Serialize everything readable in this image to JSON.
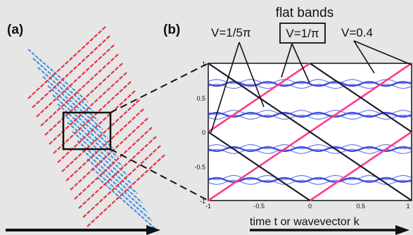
{
  "figure": {
    "panel_a_label": "(a)",
    "panel_b_label": "(b)",
    "header": "flat bands",
    "callouts": [
      "V=1/5π",
      "V=1/π",
      "V=0.4"
    ],
    "xlabel": "time t or wavevector k",
    "colors": {
      "red": "#e8343c",
      "blue": "#3a8fe0",
      "band_blue": "#3344dd",
      "pink": "#ff3b8a",
      "dark": "#1a1a2e",
      "background": "#e6e6e6"
    }
  },
  "chart_data": {
    "type": "line",
    "title": "",
    "xlabel": "time t or wavevector k",
    "ylabel": "",
    "xlim": [
      -1,
      1
    ],
    "ylim": [
      -1,
      1
    ],
    "x_ticks": [
      "-1",
      "-0.5",
      "0",
      "0.5",
      "1"
    ],
    "y_ticks": [
      "1",
      "0.5",
      "0",
      "-0.5",
      "-1"
    ],
    "series": [
      {
        "values": [
          [
            -1,
            -1
          ],
          [
            1,
            1
          ]
        ]
      },
      {
        "values": [
          [
            -1,
            0
          ],
          [
            0,
            1
          ]
        ]
      },
      {
        "values": [
          [
            0,
            -1
          ],
          [
            1,
            0
          ]
        ]
      },
      {
        "values": [
          [
            -1,
            1
          ],
          [
            1,
            -1
          ]
        ]
      },
      {
        "values": [
          [
            -1,
            0
          ],
          [
            0,
            -1
          ]
        ]
      },
      {
        "values": [
          [
            0,
            1
          ],
          [
            1,
            0
          ]
        ]
      }
    ],
    "flat_band_levels": [
      0.7,
      0.25,
      -0.25,
      -0.7
    ]
  }
}
